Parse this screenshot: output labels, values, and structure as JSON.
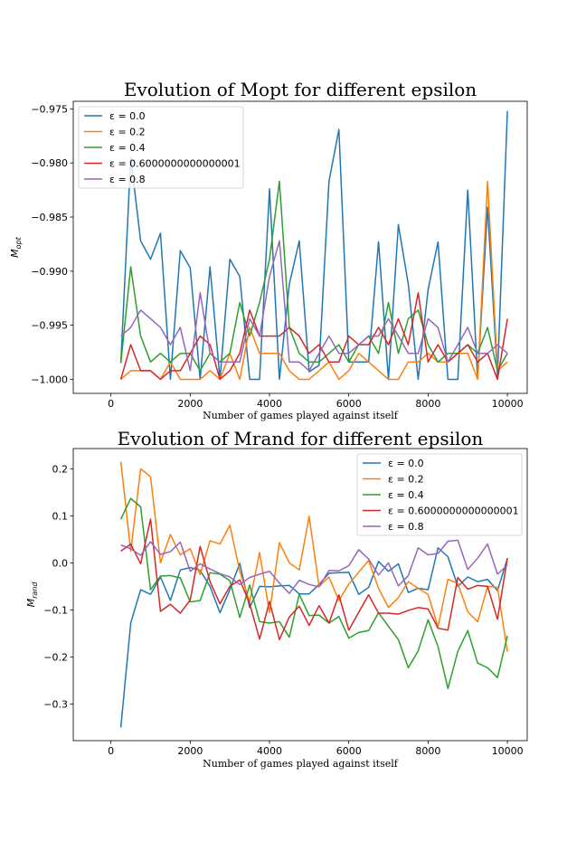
{
  "chart_data": [
    {
      "type": "line",
      "title": "Evolution of Mopt for different epsilon",
      "xlabel": "Number of games played against itself",
      "ylabel_main": "M",
      "ylabel_sub": "opt",
      "xlim": [
        -950,
        10500
      ],
      "ylim": [
        -1.0013,
        -0.9743
      ],
      "xticks": [
        0,
        2000,
        4000,
        6000,
        8000,
        10000
      ],
      "yticks": [
        -1.0,
        -0.995,
        -0.99,
        -0.985,
        -0.98,
        -0.975
      ],
      "ytick_labels": [
        "−1.000",
        "−0.995",
        "−0.990",
        "−0.985",
        "−0.980",
        "−0.975"
      ],
      "legend_loc": "upper left",
      "x": [
        250,
        500,
        750,
        1000,
        1250,
        1500,
        1750,
        2000,
        2250,
        2500,
        2750,
        3000,
        3250,
        3500,
        3750,
        4000,
        4250,
        4500,
        4750,
        5000,
        5250,
        5500,
        5750,
        6000,
        6250,
        6500,
        6750,
        7000,
        7250,
        7500,
        7750,
        8000,
        8250,
        8500,
        8750,
        9000,
        9250,
        9500,
        9750,
        10000
      ],
      "series": [
        {
          "name": "ε = 0.0",
          "color": "#1f77b4",
          "values": [
            -0.9985,
            -0.9795,
            -0.9872,
            -0.9889,
            -0.9865,
            -1.0,
            -0.9881,
            -0.9897,
            -1.0,
            -0.9896,
            -1.0,
            -0.9889,
            -0.9905,
            -1.0,
            -1.0,
            -0.9824,
            -1.0,
            -0.9912,
            -0.9872,
            -0.9993,
            -0.9987,
            -0.9817,
            -0.9769,
            -0.9984,
            -0.9984,
            -0.9984,
            -0.9873,
            -1.0,
            -0.9857,
            -0.9912,
            -1.0,
            -0.9917,
            -0.9873,
            -1.0,
            -1.0,
            -0.9825,
            -1.0,
            -0.9841,
            -0.9997,
            -0.9752
          ]
        },
        {
          "name": "ε = 0.2",
          "color": "#ff7f0e",
          "values": [
            -1.0,
            -0.9992,
            -0.9992,
            -0.9992,
            -1.0,
            -0.9984,
            -1.0,
            -1.0,
            -1.0,
            -0.9992,
            -1.0,
            -0.9976,
            -1.0,
            -0.9952,
            -0.9976,
            -0.9976,
            -0.9976,
            -0.9992,
            -1.0,
            -1.0,
            -0.9992,
            -0.9984,
            -1.0,
            -0.9992,
            -0.9976,
            -0.9984,
            -0.9992,
            -1.0,
            -1.0,
            -0.9984,
            -0.9984,
            -0.9976,
            -0.9984,
            -0.9984,
            -0.9976,
            -0.9976,
            -1.0,
            -0.9817,
            -0.9992,
            -0.9984
          ]
        },
        {
          "name": "ε = 0.4",
          "color": "#2ca02c",
          "values": [
            -0.9985,
            -0.9896,
            -0.996,
            -0.9984,
            -0.9976,
            -0.9984,
            -0.9976,
            -0.9976,
            -0.9992,
            -0.9976,
            -0.9984,
            -0.9976,
            -0.9929,
            -0.996,
            -0.9929,
            -0.9889,
            -0.9817,
            -0.9952,
            -0.9976,
            -0.9984,
            -0.9984,
            -0.9976,
            -0.9968,
            -0.9984,
            -0.9968,
            -0.996,
            -0.9976,
            -0.9929,
            -0.9976,
            -0.9944,
            -0.9936,
            -0.9968,
            -0.9984,
            -0.9976,
            -0.9976,
            -0.9968,
            -0.9976,
            -0.9952,
            -0.9992,
            -0.9976
          ]
        },
        {
          "name": "ε = 0.6000000000000001",
          "color": "#d62728",
          "values": [
            -1.0,
            -0.9968,
            -0.9992,
            -0.9992,
            -1.0,
            -0.9992,
            -0.9992,
            -0.9976,
            -0.996,
            -0.9968,
            -1.0,
            -0.9992,
            -0.9976,
            -0.9936,
            -0.996,
            -0.996,
            -0.996,
            -0.9952,
            -0.996,
            -0.9976,
            -0.9968,
            -0.9984,
            -0.9984,
            -0.996,
            -0.9968,
            -0.9968,
            -0.9952,
            -0.9968,
            -0.9944,
            -0.9968,
            -0.992,
            -0.9984,
            -0.9968,
            -0.9984,
            -0.9976,
            -0.9968,
            -0.9984,
            -0.9976,
            -1.0,
            -0.9944
          ]
        },
        {
          "name": "ε = 0.8",
          "color": "#9467bd",
          "values": [
            -0.996,
            -0.9952,
            -0.9936,
            -0.9944,
            -0.9952,
            -0.9968,
            -0.9952,
            -0.9992,
            -0.992,
            -0.9976,
            -0.9984,
            -0.9984,
            -0.9984,
            -0.9944,
            -0.996,
            -0.9905,
            -0.9872,
            -0.9984,
            -0.9984,
            -0.9992,
            -0.9976,
            -0.996,
            -0.9976,
            -0.9976,
            -0.9968,
            -0.996,
            -0.996,
            -0.9944,
            -0.996,
            -0.9976,
            -0.9976,
            -0.9944,
            -0.9952,
            -0.9984,
            -0.9968,
            -0.9952,
            -0.9976,
            -0.9976,
            -0.9968,
            -0.9976
          ]
        }
      ]
    },
    {
      "type": "line",
      "title": "Evolution of Mrand for different epsilon",
      "xlabel": "Number of games played against itself",
      "ylabel_main": "M",
      "ylabel_sub": "rand",
      "xlim": [
        -950,
        10500
      ],
      "ylim": [
        -0.378,
        0.243
      ],
      "xticks": [
        0,
        2000,
        4000,
        6000,
        8000,
        10000
      ],
      "yticks": [
        -0.3,
        -0.2,
        -0.1,
        0.0,
        0.1,
        0.2
      ],
      "ytick_labels": [
        "−0.3",
        "−0.2",
        "−0.1",
        "0.0",
        "0.1",
        "0.2"
      ],
      "legend_loc": "upper right",
      "x": [
        250,
        500,
        750,
        1000,
        1250,
        1500,
        1750,
        2000,
        2250,
        2500,
        2750,
        3000,
        3250,
        3500,
        3750,
        4000,
        4250,
        4500,
        4750,
        5000,
        5250,
        5500,
        5750,
        6000,
        6250,
        6500,
        6750,
        7000,
        7250,
        7500,
        7750,
        8000,
        8250,
        8500,
        8750,
        9000,
        9250,
        9500,
        9750,
        10000
      ],
      "series": [
        {
          "name": "ε = 0.0",
          "color": "#1f77b4",
          "values": [
            -0.35,
            -0.128,
            -0.057,
            -0.067,
            -0.03,
            -0.08,
            -0.015,
            -0.01,
            -0.016,
            -0.05,
            -0.106,
            -0.057,
            -0.001,
            -0.095,
            -0.05,
            -0.051,
            -0.049,
            -0.048,
            -0.066,
            -0.066,
            -0.046,
            -0.022,
            -0.021,
            -0.02,
            -0.067,
            -0.052,
            0.003,
            -0.018,
            -0.002,
            -0.063,
            -0.054,
            -0.057,
            0.032,
            0.013,
            -0.05,
            -0.03,
            -0.04,
            -0.035,
            -0.059,
            0.009
          ]
        },
        {
          "name": "ε = 0.2",
          "color": "#ff7f0e",
          "values": [
            0.215,
            0.025,
            0.2,
            0.183,
            0.0,
            0.06,
            0.017,
            0.03,
            -0.025,
            0.047,
            0.04,
            0.08,
            -0.018,
            -0.083,
            0.022,
            -0.106,
            0.043,
            0.0,
            -0.015,
            0.099,
            -0.05,
            -0.03,
            -0.08,
            -0.045,
            -0.02,
            0.005,
            -0.054,
            -0.095,
            -0.074,
            -0.04,
            -0.054,
            -0.067,
            -0.136,
            -0.035,
            -0.044,
            -0.104,
            -0.125,
            -0.05,
            -0.052,
            -0.189
          ]
        },
        {
          "name": "ε = 0.4",
          "color": "#2ca02c",
          "values": [
            0.093,
            0.137,
            0.119,
            -0.057,
            -0.028,
            -0.027,
            -0.032,
            -0.083,
            -0.08,
            -0.021,
            -0.024,
            -0.038,
            -0.116,
            -0.047,
            -0.125,
            -0.128,
            -0.125,
            -0.158,
            -0.067,
            -0.112,
            -0.111,
            -0.128,
            -0.114,
            -0.16,
            -0.148,
            -0.144,
            -0.106,
            -0.135,
            -0.163,
            -0.223,
            -0.187,
            -0.121,
            -0.178,
            -0.267,
            -0.188,
            -0.144,
            -0.213,
            -0.223,
            -0.244,
            -0.155
          ]
        },
        {
          "name": "ε = 0.6000000000000001",
          "color": "#d62728",
          "values": [
            0.025,
            0.04,
            -0.002,
            0.093,
            -0.103,
            -0.088,
            -0.107,
            -0.079,
            0.035,
            -0.04,
            -0.087,
            -0.05,
            -0.036,
            -0.087,
            -0.162,
            -0.082,
            -0.163,
            -0.115,
            -0.092,
            -0.133,
            -0.091,
            -0.128,
            -0.068,
            -0.143,
            -0.105,
            -0.068,
            -0.107,
            -0.107,
            -0.109,
            -0.101,
            -0.095,
            -0.098,
            -0.139,
            -0.143,
            -0.031,
            -0.056,
            -0.048,
            -0.05,
            -0.12,
            0.01
          ]
        },
        {
          "name": "ε = 0.8",
          "color": "#9467bd",
          "values": [
            0.038,
            0.03,
            0.016,
            0.045,
            0.018,
            0.024,
            0.044,
            -0.018,
            -0.002,
            -0.013,
            -0.023,
            -0.03,
            -0.046,
            -0.031,
            -0.024,
            -0.018,
            -0.043,
            -0.065,
            -0.037,
            -0.046,
            -0.051,
            -0.016,
            -0.017,
            -0.006,
            0.028,
            0.008,
            -0.026,
            0.0,
            -0.049,
            -0.027,
            0.032,
            0.017,
            0.02,
            0.046,
            0.048,
            -0.014,
            0.01,
            0.04,
            -0.024,
            -0.005
          ]
        }
      ]
    }
  ]
}
